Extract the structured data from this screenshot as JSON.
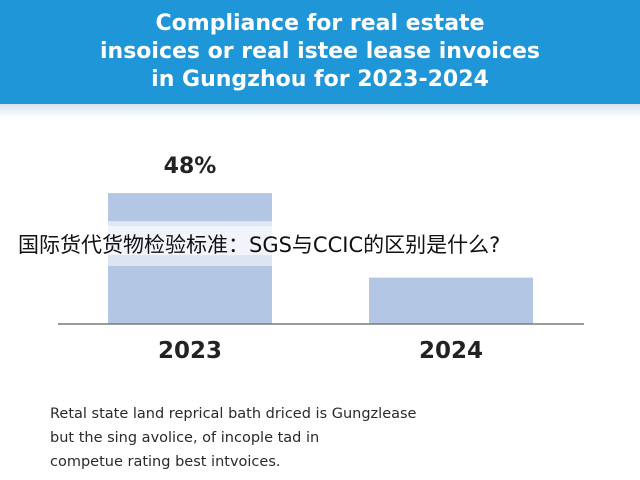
{
  "header": {
    "title": "Compliance for real estate\ninsoices or real istee lease invoices\nin Gungzhou for 2023-2024"
  },
  "overlay": {
    "text": "国际货代货物检验标准：SGS与CCIC的区别是什么?"
  },
  "caption": {
    "text": "Retal state land reprical bath driced is Gungzlease\nbut the sing avolice, of incople tad in\ncompetue rating best intvoices."
  },
  "colors": {
    "header_bg": "#1f96d8",
    "bar": "#b3c6e4",
    "bar_band": "#dfe8f5"
  },
  "chart_data": {
    "type": "bar",
    "title": "Compliance for real estate insoices or real istee lease invoices in Gungzhou for 2023-2024",
    "categories": [
      "2023",
      "2024"
    ],
    "values": [
      48,
      17
    ],
    "data_labels": [
      "48%",
      ""
    ],
    "unit": "%",
    "ylim": [
      0,
      55
    ],
    "grid": false,
    "legend": "none"
  }
}
